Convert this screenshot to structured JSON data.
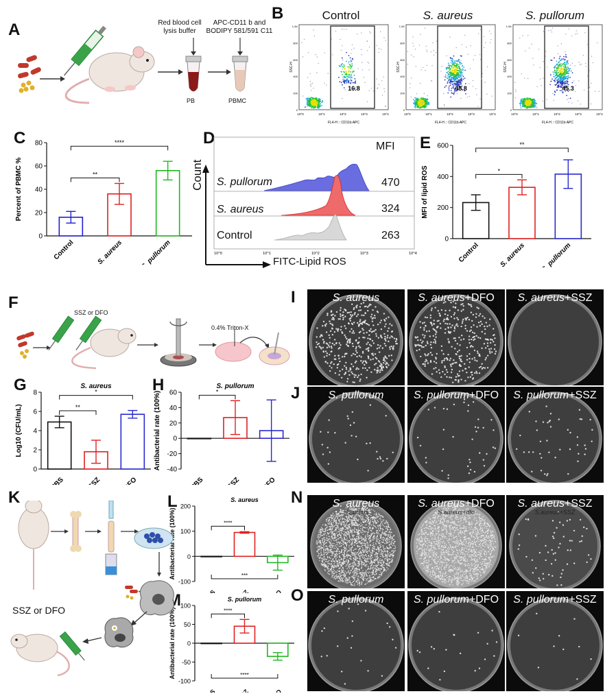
{
  "panels": {
    "A": "A",
    "B": "B",
    "C": "C",
    "D": "D",
    "E": "E",
    "F": "F",
    "G": "G",
    "H": "H",
    "I": "I",
    "J": "J",
    "K": "K",
    "L": "L",
    "M": "M",
    "N": "N",
    "O": "O"
  },
  "schematic_A": {
    "lysis": "Red blood cell lysis buffer",
    "stain": "APC-CD11 b and BODIPY 581/591 C11",
    "pb": "PB",
    "pbmc": "PBMC"
  },
  "schematic_F": {
    "treat": "SSZ or DFO",
    "triton": "0.4% Triton-X"
  },
  "schematic_K": {
    "treat": "SSZ or DFO"
  },
  "flow_B": {
    "xlabel": "FL4-H :: CD11b APC",
    "ylabel": "SSC-H",
    "plots": [
      {
        "title": "Control",
        "italic": false,
        "gate": "16.8"
      },
      {
        "title": "S. aureus",
        "italic": true,
        "gate": "48.8"
      },
      {
        "title": "S. pullorum",
        "italic": true,
        "gate": "45.3"
      }
    ],
    "yticks": [
      "0",
      "200",
      "400",
      "600",
      "800",
      "1.0K"
    ],
    "xticks": [
      "10^0",
      "10^1",
      "10^2",
      "10^3",
      "10^4"
    ]
  },
  "histogram_D": {
    "xlabel": "FITC-Lipid ROS",
    "ylabel": "Count",
    "mfi_header": "MFI",
    "rows": [
      {
        "name": "S. pullorum",
        "mfi": "470",
        "color": "#4b4fd6"
      },
      {
        "name": "S. aureus",
        "mfi": "324",
        "color": "#e8373a"
      },
      {
        "name": "Control",
        "mfi": "263",
        "color": "#c9c9c9"
      }
    ],
    "xticks": [
      "10^0",
      "10^1",
      "10^2",
      "10^3",
      "10^4"
    ]
  },
  "colors": {
    "control": "#1f1fd0",
    "aureus": "#e02020",
    "pullorum": "#1db81d",
    "pbs": "#111111",
    "ssz": "#e02020",
    "dfo": "#2828d0"
  },
  "chart_data": [
    {
      "id": "C",
      "type": "bar",
      "categories": [
        "Control",
        "S. aureus",
        "S. pullorum"
      ],
      "values": [
        16,
        36,
        56
      ],
      "errors": [
        5,
        9,
        8
      ],
      "ylabel": "Percent of PBMC %",
      "ylim": [
        0,
        80
      ],
      "yticks": [
        0,
        20,
        40,
        60,
        80
      ],
      "sig": [
        {
          "from": 0,
          "to": 1,
          "label": "**"
        },
        {
          "from": 0,
          "to": 2,
          "label": "****"
        }
      ]
    },
    {
      "id": "E",
      "type": "bar",
      "categories": [
        "Control",
        "S. aureus",
        "S. pullorum"
      ],
      "values": [
        232,
        330,
        415
      ],
      "errors": [
        50,
        48,
        92
      ],
      "ylabel": "MFI of lipid ROS",
      "ylim": [
        0,
        600
      ],
      "yticks": [
        0,
        200,
        400,
        600
      ],
      "sig": [
        {
          "from": 0,
          "to": 1,
          "label": "*"
        },
        {
          "from": 0,
          "to": 2,
          "label": "**"
        }
      ]
    },
    {
      "id": "G",
      "type": "bar",
      "title": "S. aureus",
      "categories": [
        "PBS",
        "SSZ",
        "DFO"
      ],
      "values": [
        4.9,
        1.8,
        5.7
      ],
      "errors": [
        0.6,
        1.2,
        0.4
      ],
      "ylabel": "Log10 (CFU/mL)",
      "ylim": [
        0,
        8
      ],
      "yticks": [
        0,
        2,
        4,
        6,
        8
      ],
      "sig": [
        {
          "from": 0,
          "to": 1,
          "label": "**"
        },
        {
          "from": 0,
          "to": 2,
          "label": "*"
        }
      ]
    },
    {
      "id": "H",
      "type": "bar",
      "title": "S. pullorum",
      "categories": [
        "PBS",
        "SSZ",
        "DFO"
      ],
      "values": [
        0,
        27,
        10
      ],
      "errors": [
        0,
        22,
        40
      ],
      "ylabel": "Antibacterial rate (100%)",
      "ylim": [
        -40,
        60
      ],
      "yticks": [
        -40,
        -20,
        0,
        20,
        40,
        60
      ],
      "sig": [
        {
          "from": 0,
          "to": 1,
          "label": "*"
        }
      ]
    },
    {
      "id": "L",
      "type": "bar",
      "title": "S. aureus",
      "categories": [
        "PBS",
        "SSZ",
        "DFO"
      ],
      "values": [
        0,
        95,
        -25
      ],
      "errors": [
        0,
        3,
        30
      ],
      "ylabel": "Antibacterial rate (100%)",
      "ylim": [
        -100,
        200
      ],
      "yticks": [
        -100,
        0,
        100,
        200
      ],
      "sig": [
        {
          "from": 0,
          "to": 1,
          "label": "****"
        },
        {
          "from": 0,
          "to": 2,
          "label": "***",
          "below": true
        }
      ]
    },
    {
      "id": "M",
      "type": "bar",
      "title": "S. pullorum",
      "categories": [
        "PBS",
        "SSZ",
        "DFO"
      ],
      "values": [
        0,
        45,
        -35
      ],
      "errors": [
        0,
        18,
        10
      ],
      "ylabel": "Antibacterial rate (100%)",
      "ylim": [
        -100,
        100
      ],
      "yticks": [
        -100,
        -50,
        0,
        50,
        100
      ],
      "sig": [
        {
          "from": 0,
          "to": 1,
          "label": "****"
        },
        {
          "from": 0,
          "to": 2,
          "label": "****",
          "below": true
        }
      ]
    }
  ],
  "plates": {
    "I": [
      {
        "sp": "S. aureus",
        "suffix": ""
      },
      {
        "sp": "S. aureus",
        "suffix": "+DFO"
      },
      {
        "sp": "S. aureus",
        "suffix": "+SSZ"
      }
    ],
    "J": [
      {
        "sp": "S. pullorum",
        "suffix": ""
      },
      {
        "sp": "S. pullorum",
        "suffix": "+DFO"
      },
      {
        "sp": "S. pullorum",
        "suffix": "+SSZ"
      }
    ],
    "N": [
      {
        "sp": "S. aureus",
        "suffix": ""
      },
      {
        "sp": "S. aureus",
        "suffix": "+DFO"
      },
      {
        "sp": "S. aureus",
        "suffix": "+SSZ"
      }
    ],
    "O": [
      {
        "sp": "S. pullorum",
        "suffix": ""
      },
      {
        "sp": "S. pullorum",
        "suffix": "+DFO"
      },
      {
        "sp": "S. pullorum",
        "suffix": "+SSZ"
      }
    ],
    "handwriting_N": [
      "S.aureus",
      "S.aureus+dfo",
      "S.aureus+SSZ"
    ]
  }
}
